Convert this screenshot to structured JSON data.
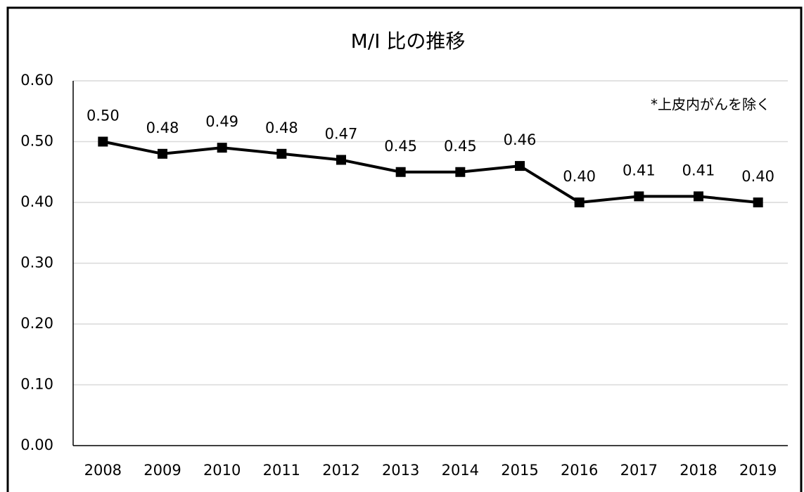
{
  "chart_data": {
    "type": "line",
    "title": "M/I 比の推移",
    "annotation": "*上皮内がんを除く",
    "categories": [
      "2008",
      "2009",
      "2010",
      "2011",
      "2012",
      "2013",
      "2014",
      "2015",
      "2016",
      "2017",
      "2018",
      "2019"
    ],
    "values": [
      0.5,
      0.48,
      0.49,
      0.48,
      0.47,
      0.45,
      0.45,
      0.46,
      0.4,
      0.41,
      0.41,
      0.4
    ],
    "value_labels": [
      "0.50",
      "0.48",
      "0.49",
      "0.48",
      "0.47",
      "0.45",
      "0.45",
      "0.46",
      "0.40",
      "0.41",
      "0.41",
      "0.40"
    ],
    "color": "#000000",
    "ylim": [
      0,
      0.6
    ],
    "yticks": [
      {
        "value": 0,
        "label": "0.00"
      },
      {
        "value": 0.1,
        "label": "0.10"
      },
      {
        "value": 0.2,
        "label": "0.20"
      },
      {
        "value": 0.3,
        "label": "0.30"
      },
      {
        "value": 0.4,
        "label": "0.40"
      },
      {
        "value": 0.5,
        "label": "0.50"
      },
      {
        "value": 0.6,
        "label": "0.60"
      }
    ],
    "grid": true
  }
}
